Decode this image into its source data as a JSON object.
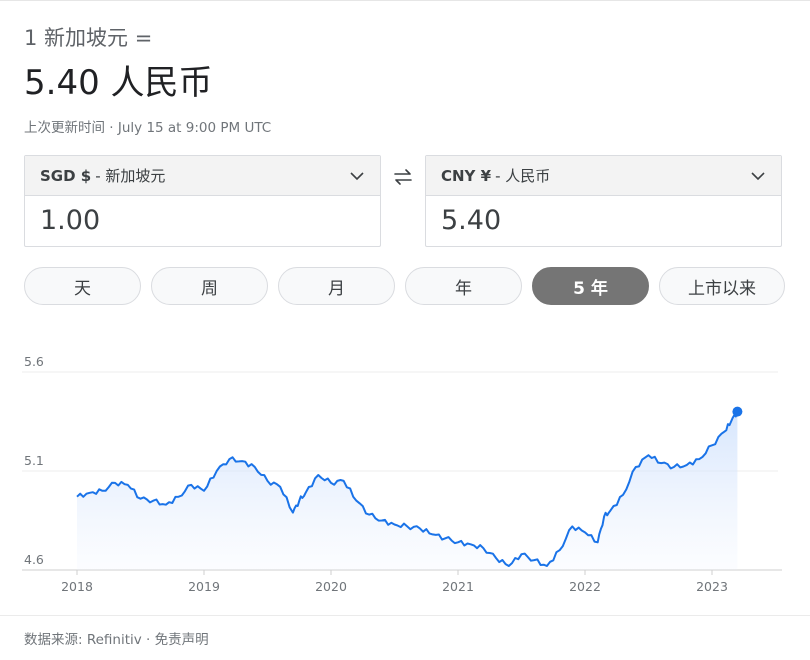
{
  "header": {
    "equation": "1 新加坡元 =",
    "result": "5.40 人民币",
    "updated": "上次更新时间 · July 15 at 9:00 PM UTC"
  },
  "from_currency": {
    "code": "SGD $",
    "name": "- 新加坡元",
    "amount": "1.00"
  },
  "to_currency": {
    "code": "CNY ¥",
    "name": "- 人民币",
    "amount": "5.40"
  },
  "ranges": [
    {
      "label": "天",
      "active": false
    },
    {
      "label": "周",
      "active": false
    },
    {
      "label": "月",
      "active": false
    },
    {
      "label": "年",
      "active": false
    },
    {
      "label": "5 年",
      "active": true
    },
    {
      "label": "上市以来",
      "active": false
    }
  ],
  "colors": {
    "line": "#1a73e8",
    "fill": "#e8f0fe",
    "accent_active": "#757575"
  },
  "chart_data": {
    "type": "line",
    "ylim": [
      4.6,
      5.6
    ],
    "y_ticks": [
      "5.6",
      "5.1",
      "4.6"
    ],
    "x_ticks": [
      "2018",
      "2019",
      "2020",
      "2021",
      "2022",
      "2023"
    ],
    "x": [
      2018.0,
      2018.1,
      2018.2,
      2018.3,
      2018.4,
      2018.5,
      2018.6,
      2018.7,
      2018.8,
      2018.9,
      2019.0,
      2019.1,
      2019.2,
      2019.3,
      2019.4,
      2019.5,
      2019.6,
      2019.7,
      2019.75,
      2019.8,
      2019.9,
      2020.0,
      2020.1,
      2020.2,
      2020.3,
      2020.4,
      2020.5,
      2020.6,
      2020.7,
      2020.8,
      2020.9,
      2021.0,
      2021.1,
      2021.2,
      2021.3,
      2021.4,
      2021.5,
      2021.6,
      2021.7,
      2021.8,
      2021.9,
      2022.0,
      2022.1,
      2022.15,
      2022.2,
      2022.3,
      2022.4,
      2022.5,
      2022.6,
      2022.7,
      2022.8,
      2022.9,
      2023.0,
      2023.1,
      2023.15,
      2023.2
    ],
    "values": [
      4.97,
      4.99,
      5.0,
      5.04,
      5.03,
      4.96,
      4.95,
      4.93,
      4.97,
      5.03,
      5.0,
      5.1,
      5.16,
      5.15,
      5.12,
      5.05,
      5.02,
      4.89,
      4.95,
      4.99,
      5.08,
      5.04,
      5.05,
      4.95,
      4.88,
      4.85,
      4.83,
      4.82,
      4.81,
      4.78,
      4.76,
      4.74,
      4.73,
      4.71,
      4.66,
      4.62,
      4.68,
      4.65,
      4.62,
      4.7,
      4.82,
      4.79,
      4.74,
      4.87,
      4.9,
      4.98,
      5.12,
      5.18,
      5.14,
      5.12,
      5.13,
      5.16,
      5.23,
      5.3,
      5.35,
      5.4
    ]
  },
  "footer": "数据来源: Refinitiv · 免责声明"
}
